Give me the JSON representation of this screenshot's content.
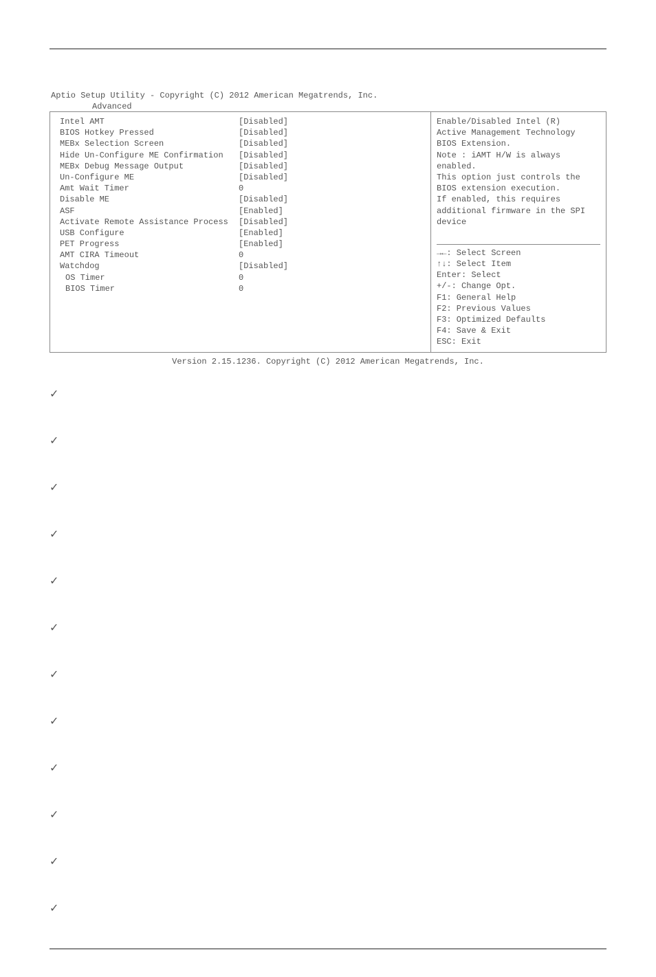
{
  "header": {
    "title_line": "Aptio Setup Utility - Copyright (C) 2012 American Megatrends, Inc.",
    "tab": "Advanced",
    "footer": "Version 2.15.1236. Copyright (C) 2012 American Megatrends, Inc."
  },
  "settings": [
    {
      "label": "Intel AMT",
      "value": "[Disabled]",
      "indent": 0
    },
    {
      "label": "BIOS Hotkey Pressed",
      "value": "[Disabled]",
      "indent": 0
    },
    {
      "label": "MEBx Selection Screen",
      "value": "[Disabled]",
      "indent": 0
    },
    {
      "label": "Hide Un-Configure ME Confirmation",
      "value": "[Disabled]",
      "indent": 0
    },
    {
      "label": "MEBx Debug Message Output",
      "value": "[Disabled]",
      "indent": 0
    },
    {
      "label": "Un-Configure ME",
      "value": "[Disabled]",
      "indent": 0
    },
    {
      "label": "Amt Wait Timer",
      "value": "0",
      "indent": 0
    },
    {
      "label": "Disable ME",
      "value": "[Disabled]",
      "indent": 0
    },
    {
      "label": "ASF",
      "value": "[Enabled]",
      "indent": 0
    },
    {
      "label": "Activate Remote Assistance Process",
      "value": "[Disabled]",
      "indent": 0
    },
    {
      "label": "USB Configure",
      "value": "[Enabled]",
      "indent": 0
    },
    {
      "label": "PET Progress",
      "value": "[Enabled]",
      "indent": 0
    },
    {
      "label": "AMT CIRA Timeout",
      "value": "0",
      "indent": 0
    },
    {
      "label": "Watchdog",
      "value": "[Disabled]",
      "indent": 0
    },
    {
      "label": "OS Timer",
      "value": "0",
      "indent": 1
    },
    {
      "label": "BIOS Timer",
      "value": "0",
      "indent": 1
    }
  ],
  "help": {
    "lines": [
      "Enable/Disabled Intel (R)",
      "Active Management Technology",
      "BIOS Extension.",
      "Note : iAMT H/W is always",
      "enabled.",
      "This option just controls the",
      "BIOS extension execution.",
      "If enabled, this requires",
      "additional firmware in the SPI",
      "device"
    ]
  },
  "nav": [
    "→←: Select Screen",
    "↑↓: Select Item",
    "Enter: Select",
    "+/-: Change Opt.",
    "F1: General Help",
    "F2: Previous Values",
    "F3: Optimized Defaults",
    "F4: Save & Exit",
    "ESC: Exit"
  ],
  "checks": [
    "✓",
    "✓",
    "✓",
    "✓",
    "✓",
    "✓",
    "✓",
    "✓",
    "✓",
    "✓",
    "✓",
    "✓"
  ]
}
